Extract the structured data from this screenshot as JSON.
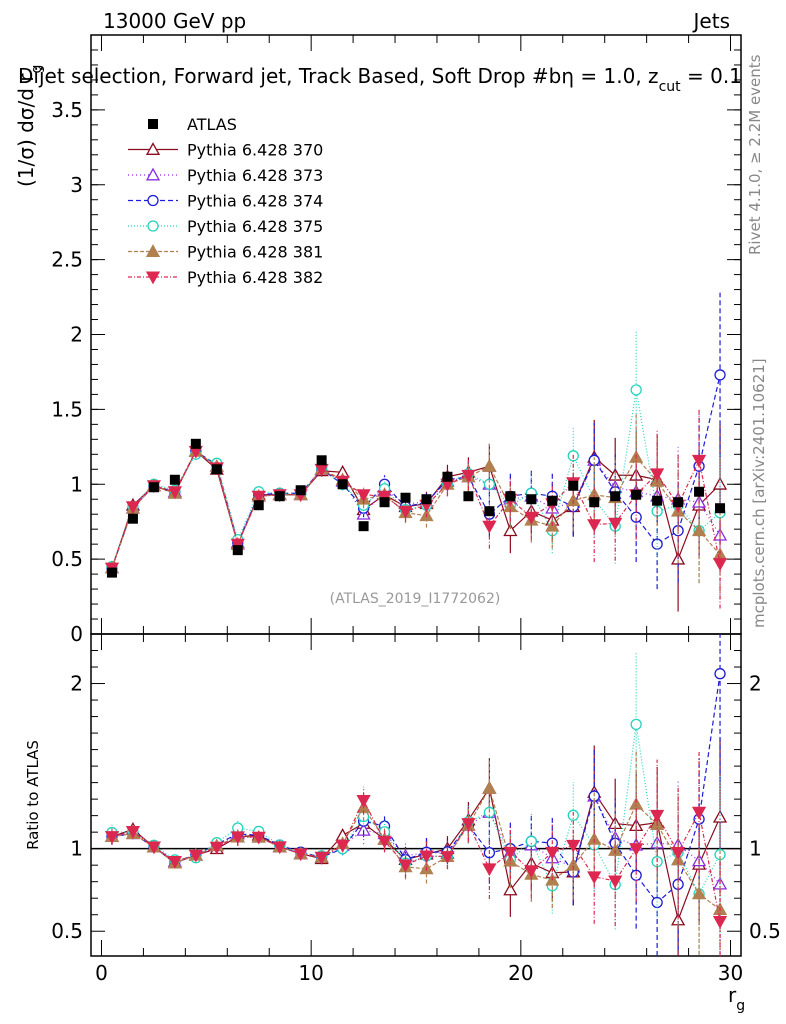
{
  "header": {
    "left": "13000 GeV pp",
    "right": "Jets"
  },
  "title": "Dijet selection, Forward jet, Track Based, Soft Drop #b",
  "title_tail": "η = 1.0, z",
  "title_sub": "cut",
  "title_end": " = 0.1",
  "side_text_top": "Rivet 4.1.0, ≥ 2.2M events",
  "side_text_bottom": "mcplots.cern.ch [arXiv:2401.10621]",
  "watermark": "(ATLAS_2019_I1772062)",
  "colors": {
    "ATLAS": "#000000",
    "s370": "#8b0a1e",
    "s373": "#8a2be2",
    "s374": "#1c1cd6",
    "s375": "#22d4bc",
    "s381": "#b08050",
    "s382": "#dc2850"
  },
  "chart_data": {
    "type": "scatter",
    "xlabel_main": "r",
    "xlabel_sub": "g",
    "ylabel": "(1/σ) dσ/d r",
    "ylabel_sub": "g",
    "ratio_ylabel": "Ratio to ATLAS",
    "xlim": [
      -0.5,
      30.5
    ],
    "ylim": [
      0,
      4.0
    ],
    "ratio_ylim": [
      0.35,
      2.3
    ],
    "x_ticks": [
      0,
      10,
      20,
      30
    ],
    "y_ticks": [
      0,
      0.5,
      1,
      1.5,
      2,
      2.5,
      3,
      3.5
    ],
    "ratio_ticks": [
      0.5,
      1,
      2
    ],
    "x": [
      0.5,
      1.5,
      2.5,
      3.5,
      4.5,
      5.5,
      6.5,
      7.5,
      8.5,
      9.5,
      10.5,
      11.5,
      12.5,
      13.5,
      14.5,
      15.5,
      16.5,
      17.5,
      18.5,
      19.5,
      20.5,
      21.5,
      22.5,
      23.5,
      24.5,
      25.5,
      26.5,
      27.5,
      28.5,
      29.5
    ],
    "data": {
      "name": "ATLAS",
      "values": [
        0.41,
        0.77,
        0.98,
        1.03,
        1.27,
        1.1,
        0.56,
        0.86,
        0.92,
        0.96,
        1.16,
        1.0,
        0.72,
        0.88,
        0.91,
        0.9,
        1.05,
        0.92,
        0.82,
        0.92,
        0.9,
        0.89,
        0.99,
        0.88,
        0.92,
        0.93,
        0.89,
        0.88,
        0.95,
        0.84
      ]
    },
    "series": [
      {
        "name": "Pythia 6.428 370",
        "key": "s370",
        "marker": "tri-up-open",
        "dash": "",
        "values": [
          0.44,
          0.86,
          0.99,
          0.94,
          1.22,
          1.1,
          0.6,
          0.93,
          0.93,
          0.93,
          1.09,
          1.08,
          0.83,
          0.93,
          0.85,
          0.87,
          1.05,
          1.08,
          1.12,
          0.69,
          0.82,
          0.76,
          0.85,
          1.18,
          1.06,
          1.06,
          1.03,
          0.5,
          0.86,
          1.0
        ],
        "errors": [
          0.02,
          0.02,
          0.02,
          0.02,
          0.03,
          0.03,
          0.03,
          0.03,
          0.03,
          0.03,
          0.04,
          0.04,
          0.06,
          0.06,
          0.07,
          0.08,
          0.08,
          0.1,
          0.15,
          0.15,
          0.15,
          0.15,
          0.2,
          0.25,
          0.25,
          0.3,
          0.3,
          0.35,
          0.35,
          0.4
        ]
      },
      {
        "name": "Pythia 6.428 373",
        "key": "s373",
        "marker": "tri-up-open",
        "dash": "1,3",
        "values": [
          0.44,
          0.84,
          0.99,
          0.95,
          1.22,
          1.12,
          0.61,
          0.92,
          0.93,
          0.93,
          1.1,
          1.02,
          0.8,
          0.96,
          0.87,
          0.88,
          1.02,
          1.05,
          1.0,
          0.9,
          0.92,
          0.84,
          0.88,
          1.16,
          0.98,
          0.95,
          0.92,
          0.9,
          0.88,
          0.66
        ],
        "errors": [
          0.02,
          0.02,
          0.02,
          0.02,
          0.03,
          0.03,
          0.03,
          0.03,
          0.03,
          0.03,
          0.04,
          0.04,
          0.06,
          0.06,
          0.07,
          0.08,
          0.08,
          0.1,
          0.15,
          0.15,
          0.15,
          0.15,
          0.2,
          0.25,
          0.25,
          0.3,
          0.3,
          0.35,
          0.35,
          0.4
        ]
      },
      {
        "name": "Pythia 6.428 374",
        "key": "s374",
        "marker": "circle-open",
        "dash": "5,3",
        "values": [
          0.44,
          0.84,
          0.99,
          0.95,
          1.22,
          1.13,
          0.61,
          0.93,
          0.94,
          0.94,
          1.1,
          1.0,
          0.84,
          1.0,
          0.85,
          0.88,
          1.03,
          1.05,
          0.8,
          0.92,
          0.94,
          0.92,
          0.85,
          1.16,
          0.95,
          0.78,
          0.6,
          0.69,
          1.12,
          1.73
        ],
        "errors": [
          0.02,
          0.02,
          0.02,
          0.02,
          0.03,
          0.03,
          0.03,
          0.03,
          0.03,
          0.03,
          0.04,
          0.04,
          0.06,
          0.06,
          0.07,
          0.08,
          0.08,
          0.1,
          0.15,
          0.15,
          0.15,
          0.15,
          0.2,
          0.25,
          0.25,
          0.3,
          0.3,
          0.35,
          0.35,
          0.55
        ]
      },
      {
        "name": "Pythia 6.428 375",
        "key": "s375",
        "marker": "circle-open",
        "dash": "1,2",
        "values": [
          0.45,
          0.85,
          1.0,
          0.96,
          1.2,
          1.14,
          0.63,
          0.95,
          0.94,
          0.93,
          1.11,
          1.0,
          0.86,
          0.97,
          0.83,
          0.86,
          1.0,
          1.07,
          1.0,
          0.86,
          0.94,
          0.69,
          1.19,
          0.9,
          0.72,
          1.63,
          0.82,
          0.86,
          0.69,
          0.81
        ],
        "errors": [
          0.02,
          0.02,
          0.02,
          0.02,
          0.03,
          0.03,
          0.03,
          0.03,
          0.03,
          0.03,
          0.04,
          0.04,
          0.06,
          0.06,
          0.07,
          0.08,
          0.08,
          0.1,
          0.15,
          0.15,
          0.15,
          0.15,
          0.2,
          0.25,
          0.25,
          0.4,
          0.3,
          0.35,
          0.35,
          0.4
        ]
      },
      {
        "name": "Pythia 6.428 381",
        "key": "s381",
        "marker": "tri-up-filled",
        "dash": "4,2",
        "values": [
          0.44,
          0.84,
          0.99,
          0.94,
          1.22,
          1.12,
          0.6,
          0.92,
          0.93,
          0.93,
          1.1,
          1.03,
          0.9,
          0.93,
          0.81,
          0.79,
          1.0,
          1.05,
          1.12,
          0.85,
          0.76,
          0.72,
          0.89,
          0.93,
          0.91,
          1.18,
          1.02,
          0.82,
          0.69,
          0.53
        ],
        "errors": [
          0.02,
          0.02,
          0.02,
          0.02,
          0.03,
          0.03,
          0.03,
          0.03,
          0.03,
          0.03,
          0.04,
          0.04,
          0.06,
          0.06,
          0.07,
          0.08,
          0.08,
          0.1,
          0.15,
          0.15,
          0.15,
          0.15,
          0.2,
          0.25,
          0.25,
          0.3,
          0.3,
          0.35,
          0.35,
          0.3
        ]
      },
      {
        "name": "Pythia 6.428 382",
        "key": "s382",
        "marker": "tri-down-filled",
        "dash": "4,2,1,2",
        "values": [
          0.44,
          0.85,
          0.99,
          0.95,
          1.22,
          1.11,
          0.6,
          0.92,
          0.93,
          0.93,
          1.1,
          1.02,
          0.93,
          0.92,
          0.82,
          0.86,
          1.0,
          1.06,
          0.72,
          0.9,
          0.78,
          0.87,
          1.01,
          0.73,
          0.74,
          0.93,
          1.07,
          0.86,
          1.16,
          0.47
        ],
        "errors": [
          0.02,
          0.02,
          0.02,
          0.02,
          0.03,
          0.03,
          0.03,
          0.03,
          0.03,
          0.03,
          0.04,
          0.04,
          0.06,
          0.06,
          0.07,
          0.08,
          0.08,
          0.1,
          0.15,
          0.15,
          0.15,
          0.15,
          0.2,
          0.25,
          0.25,
          0.3,
          0.3,
          0.35,
          0.35,
          0.3
        ]
      }
    ]
  }
}
